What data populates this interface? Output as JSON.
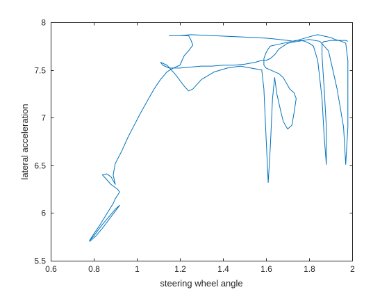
{
  "chart_data": {
    "type": "line",
    "title": "",
    "xlabel": "steering wheel angle",
    "ylabel": "lateral acceleration",
    "xlim": [
      0.6,
      2.0
    ],
    "ylim": [
      5.5,
      8.0
    ],
    "xticks": [
      "0.6",
      "0.8",
      "1",
      "1.2",
      "1.4",
      "1.6",
      "1.8",
      "2"
    ],
    "yticks": [
      "5.5",
      "6",
      "6.5",
      "7",
      "7.5",
      "8"
    ],
    "grid": false,
    "legend": "none",
    "series_color": "#0072BD",
    "axis_color": "#262626",
    "series": [
      {
        "x": [
          0.78,
          0.81,
          0.84,
          0.87,
          0.9,
          0.92,
          0.9,
          0.87,
          0.84,
          0.82,
          0.8,
          0.78,
          0.8,
          0.83,
          0.86,
          0.89,
          0.9,
          0.92,
          0.91,
          0.88,
          0.86,
          0.84,
          0.86,
          0.88,
          0.9,
          0.89,
          0.9,
          0.93,
          0.96,
          0.99,
          1.02,
          1.05,
          1.08,
          1.11,
          1.14,
          1.17,
          1.19,
          1.2,
          1.21,
          1.22,
          1.24,
          1.26,
          1.25,
          1.24,
          1.15,
          1.18,
          1.2,
          1.25,
          1.35,
          1.45,
          1.55,
          1.62,
          1.66,
          1.7,
          1.73,
          1.76,
          1.79,
          1.82,
          1.84,
          1.86,
          1.88,
          1.9,
          1.92,
          1.95,
          1.97,
          1.98,
          1.98,
          1.97,
          1.96,
          1.93,
          1.89,
          1.85,
          1.8,
          1.75,
          1.7,
          1.66,
          1.64,
          1.62,
          1.6,
          1.58,
          1.55,
          1.5,
          1.45,
          1.4,
          1.35,
          1.3,
          1.25,
          1.2,
          1.15,
          1.12,
          1.11,
          1.14,
          1.18,
          1.22,
          1.24,
          1.26,
          1.3,
          1.36,
          1.42,
          1.48,
          1.53,
          1.58,
          1.59,
          1.6,
          1.61,
          1.62,
          1.63,
          1.64,
          1.65,
          1.66,
          1.67,
          1.68,
          1.7,
          1.72,
          1.73,
          1.74,
          1.73,
          1.72,
          1.71,
          1.7,
          1.69,
          1.68,
          1.66,
          1.64,
          1.62,
          1.6,
          1.59,
          1.59,
          1.6,
          1.61,
          1.62,
          1.64,
          1.66,
          1.68,
          1.7,
          1.72,
          1.74,
          1.76,
          1.78,
          1.8,
          1.82,
          1.84,
          1.86,
          1.87,
          1.88,
          1.88,
          1.87,
          1.86,
          1.86,
          1.87,
          1.88,
          1.9,
          1.92,
          1.95,
          1.97,
          1.98
        ],
        "y": [
          5.7,
          5.76,
          5.84,
          5.93,
          6.02,
          6.08,
          6.04,
          5.96,
          5.88,
          5.82,
          5.76,
          5.71,
          5.78,
          5.88,
          5.99,
          6.1,
          6.15,
          6.22,
          6.25,
          6.3,
          6.35,
          6.4,
          6.41,
          6.38,
          6.3,
          6.4,
          6.52,
          6.65,
          6.8,
          6.93,
          7.06,
          7.18,
          7.3,
          7.4,
          7.48,
          7.52,
          7.54,
          7.55,
          7.6,
          7.65,
          7.7,
          7.76,
          7.82,
          7.86,
          7.86,
          7.86,
          7.86,
          7.87,
          7.86,
          7.85,
          7.84,
          7.83,
          7.82,
          7.81,
          7.8,
          7.82,
          7.84,
          7.86,
          7.87,
          7.86,
          7.85,
          7.84,
          7.82,
          7.8,
          7.78,
          7.6,
          6.9,
          6.51,
          6.9,
          7.3,
          7.7,
          7.8,
          7.82,
          7.8,
          7.78,
          7.72,
          7.66,
          7.62,
          7.6,
          7.6,
          7.58,
          7.56,
          7.55,
          7.55,
          7.54,
          7.54,
          7.53,
          7.52,
          7.52,
          7.55,
          7.58,
          7.55,
          7.45,
          7.33,
          7.28,
          7.3,
          7.4,
          7.48,
          7.52,
          7.54,
          7.52,
          7.5,
          7.3,
          6.8,
          6.32,
          6.7,
          7.2,
          7.42,
          7.25,
          7.15,
          7.05,
          6.96,
          6.88,
          6.92,
          7.05,
          7.2,
          7.26,
          7.28,
          7.3,
          7.34,
          7.38,
          7.42,
          7.46,
          7.48,
          7.5,
          7.52,
          7.55,
          7.62,
          7.68,
          7.72,
          7.75,
          7.76,
          7.77,
          7.78,
          7.79,
          7.8,
          7.81,
          7.81,
          7.8,
          7.78,
          7.75,
          7.6,
          7.2,
          6.8,
          6.51,
          6.9,
          7.3,
          7.65,
          7.78,
          7.8,
          7.8,
          7.81,
          7.81,
          7.81,
          7.81,
          7.8
        ]
      }
    ]
  }
}
